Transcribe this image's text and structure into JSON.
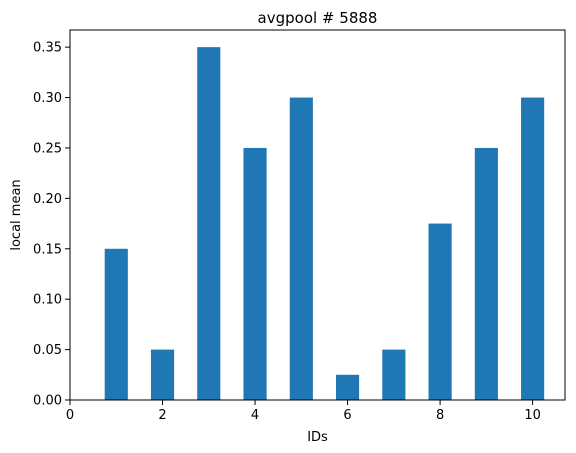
{
  "chart_data": {
    "type": "bar",
    "title": "avgpool # 5888",
    "xlabel": "IDs",
    "ylabel": "local mean",
    "x": [
      1,
      2,
      3,
      4,
      5,
      6,
      7,
      8,
      9,
      10
    ],
    "values": [
      0.15,
      0.05,
      0.35,
      0.25,
      0.3,
      0.025,
      0.05,
      0.175,
      0.25,
      0.3
    ],
    "bar_width": 0.5,
    "xlim": [
      0,
      10.7
    ],
    "ylim": [
      0,
      0.367
    ],
    "xticks": [
      0,
      2,
      4,
      6,
      8,
      10
    ],
    "xtick_labels": [
      "0",
      "2",
      "4",
      "6",
      "8",
      "10"
    ],
    "yticks": [
      0,
      0.05,
      0.1,
      0.15,
      0.2,
      0.25,
      0.3,
      0.35
    ],
    "ytick_labels": [
      "0.00",
      "0.05",
      "0.10",
      "0.15",
      "0.20",
      "0.25",
      "0.30",
      "0.35"
    ],
    "grid": false,
    "bar_color": "#1f77b4"
  }
}
